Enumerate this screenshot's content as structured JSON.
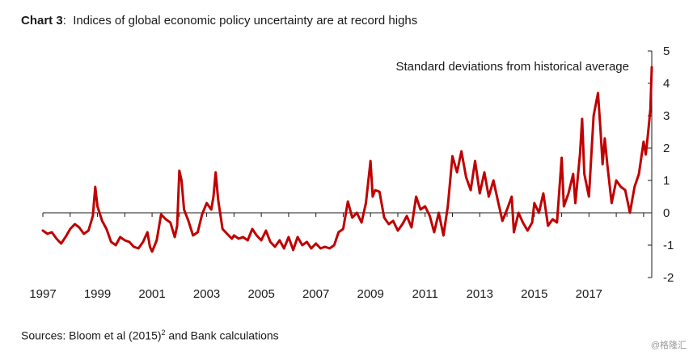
{
  "title": {
    "label": "Chart 3",
    "separator": ":",
    "text": "Indices of global economic policy uncertainty are at record highs"
  },
  "source": {
    "prefix": "Sources:  Bloom et al (2015)",
    "superscript": "2",
    "suffix": " and Bank calculations"
  },
  "watermark": "@格隆汇",
  "chart_data": {
    "type": "line",
    "annotation": "Standard deviations from historical average",
    "ylim": [
      -2,
      5
    ],
    "y_ticks": [
      "5",
      "4",
      "3",
      "2",
      "1",
      "0",
      "-1",
      "-2"
    ],
    "x_ticks": [
      "1997",
      "1999",
      "2001",
      "2003",
      "2005",
      "2007",
      "2009",
      "2011",
      "2013",
      "2015",
      "2017"
    ],
    "xlim": [
      1997,
      2019.3
    ],
    "grid": false,
    "line_color": "#c00000",
    "series": [
      {
        "points": [
          [
            1997.0,
            -0.55
          ],
          [
            1997.17,
            -0.65
          ],
          [
            1997.33,
            -0.6
          ],
          [
            1997.5,
            -0.8
          ],
          [
            1997.67,
            -0.95
          ],
          [
            1997.83,
            -0.75
          ],
          [
            1998.0,
            -0.5
          ],
          [
            1998.17,
            -0.35
          ],
          [
            1998.33,
            -0.45
          ],
          [
            1998.5,
            -0.65
          ],
          [
            1998.67,
            -0.55
          ],
          [
            1998.83,
            -0.1
          ],
          [
            1998.92,
            0.8
          ],
          [
            1999.0,
            0.2
          ],
          [
            1999.17,
            -0.25
          ],
          [
            1999.33,
            -0.5
          ],
          [
            1999.5,
            -0.9
          ],
          [
            1999.67,
            -1.0
          ],
          [
            1999.83,
            -0.75
          ],
          [
            2000.0,
            -0.85
          ],
          [
            2000.17,
            -0.9
          ],
          [
            2000.33,
            -1.05
          ],
          [
            2000.5,
            -1.1
          ],
          [
            2000.67,
            -0.9
          ],
          [
            2000.83,
            -0.6
          ],
          [
            2000.92,
            -1.05
          ],
          [
            2001.0,
            -1.2
          ],
          [
            2001.17,
            -0.85
          ],
          [
            2001.33,
            -0.05
          ],
          [
            2001.5,
            -0.2
          ],
          [
            2001.67,
            -0.3
          ],
          [
            2001.83,
            -0.75
          ],
          [
            2001.92,
            -0.4
          ],
          [
            2002.0,
            1.3
          ],
          [
            2002.08,
            1.0
          ],
          [
            2002.17,
            0.1
          ],
          [
            2002.33,
            -0.25
          ],
          [
            2002.5,
            -0.7
          ],
          [
            2002.67,
            -0.6
          ],
          [
            2002.83,
            -0.05
          ],
          [
            2003.0,
            0.3
          ],
          [
            2003.17,
            0.1
          ],
          [
            2003.25,
            0.5
          ],
          [
            2003.33,
            1.25
          ],
          [
            2003.42,
            0.4
          ],
          [
            2003.58,
            -0.5
          ],
          [
            2003.75,
            -0.65
          ],
          [
            2003.92,
            -0.8
          ],
          [
            2004.0,
            -0.7
          ],
          [
            2004.17,
            -0.8
          ],
          [
            2004.33,
            -0.75
          ],
          [
            2004.5,
            -0.85
          ],
          [
            2004.67,
            -0.5
          ],
          [
            2004.83,
            -0.7
          ],
          [
            2005.0,
            -0.85
          ],
          [
            2005.17,
            -0.55
          ],
          [
            2005.33,
            -0.9
          ],
          [
            2005.5,
            -1.05
          ],
          [
            2005.67,
            -0.85
          ],
          [
            2005.83,
            -1.1
          ],
          [
            2006.0,
            -0.75
          ],
          [
            2006.17,
            -1.15
          ],
          [
            2006.33,
            -0.75
          ],
          [
            2006.5,
            -1.0
          ],
          [
            2006.67,
            -0.9
          ],
          [
            2006.83,
            -1.1
          ],
          [
            2007.0,
            -0.95
          ],
          [
            2007.17,
            -1.1
          ],
          [
            2007.33,
            -1.05
          ],
          [
            2007.5,
            -1.1
          ],
          [
            2007.67,
            -1.0
          ],
          [
            2007.83,
            -0.6
          ],
          [
            2008.0,
            -0.5
          ],
          [
            2008.17,
            0.35
          ],
          [
            2008.33,
            -0.15
          ],
          [
            2008.5,
            0.0
          ],
          [
            2008.67,
            -0.3
          ],
          [
            2008.83,
            0.3
          ],
          [
            2009.0,
            1.6
          ],
          [
            2009.08,
            0.5
          ],
          [
            2009.17,
            0.7
          ],
          [
            2009.33,
            0.65
          ],
          [
            2009.5,
            -0.15
          ],
          [
            2009.67,
            -0.35
          ],
          [
            2009.83,
            -0.25
          ],
          [
            2010.0,
            -0.55
          ],
          [
            2010.17,
            -0.35
          ],
          [
            2010.33,
            -0.1
          ],
          [
            2010.5,
            -0.45
          ],
          [
            2010.67,
            0.5
          ],
          [
            2010.83,
            0.1
          ],
          [
            2011.0,
            0.2
          ],
          [
            2011.17,
            -0.1
          ],
          [
            2011.33,
            -0.6
          ],
          [
            2011.5,
            0.0
          ],
          [
            2011.67,
            -0.7
          ],
          [
            2011.83,
            0.2
          ],
          [
            2012.0,
            1.75
          ],
          [
            2012.17,
            1.25
          ],
          [
            2012.33,
            1.9
          ],
          [
            2012.5,
            1.1
          ],
          [
            2012.67,
            0.7
          ],
          [
            2012.83,
            1.6
          ],
          [
            2013.0,
            0.6
          ],
          [
            2013.17,
            1.25
          ],
          [
            2013.33,
            0.5
          ],
          [
            2013.5,
            1.0
          ],
          [
            2013.67,
            0.35
          ],
          [
            2013.83,
            -0.25
          ],
          [
            2014.0,
            0.1
          ],
          [
            2014.17,
            0.5
          ],
          [
            2014.25,
            -0.6
          ],
          [
            2014.42,
            0.0
          ],
          [
            2014.58,
            -0.3
          ],
          [
            2014.75,
            -0.55
          ],
          [
            2014.92,
            -0.3
          ],
          [
            2015.0,
            0.3
          ],
          [
            2015.17,
            0.0
          ],
          [
            2015.33,
            0.6
          ],
          [
            2015.5,
            -0.4
          ],
          [
            2015.67,
            -0.2
          ],
          [
            2015.83,
            -0.3
          ],
          [
            2016.0,
            1.7
          ],
          [
            2016.08,
            0.2
          ],
          [
            2016.25,
            0.6
          ],
          [
            2016.42,
            1.2
          ],
          [
            2016.5,
            0.3
          ],
          [
            2016.67,
            1.8
          ],
          [
            2016.75,
            2.9
          ],
          [
            2016.83,
            1.2
          ],
          [
            2017.0,
            0.5
          ],
          [
            2017.17,
            3.0
          ],
          [
            2017.33,
            3.7
          ],
          [
            2017.42,
            2.6
          ],
          [
            2017.5,
            1.5
          ],
          [
            2017.58,
            2.3
          ],
          [
            2017.67,
            1.5
          ],
          [
            2017.83,
            0.3
          ],
          [
            2018.0,
            1.0
          ],
          [
            2018.17,
            0.8
          ],
          [
            2018.33,
            0.7
          ],
          [
            2018.5,
            0.0
          ],
          [
            2018.67,
            0.8
          ],
          [
            2018.83,
            1.2
          ],
          [
            2019.0,
            2.2
          ],
          [
            2019.08,
            1.8
          ],
          [
            2019.17,
            2.5
          ],
          [
            2019.25,
            3.2
          ],
          [
            2019.3,
            4.5
          ]
        ]
      }
    ]
  }
}
